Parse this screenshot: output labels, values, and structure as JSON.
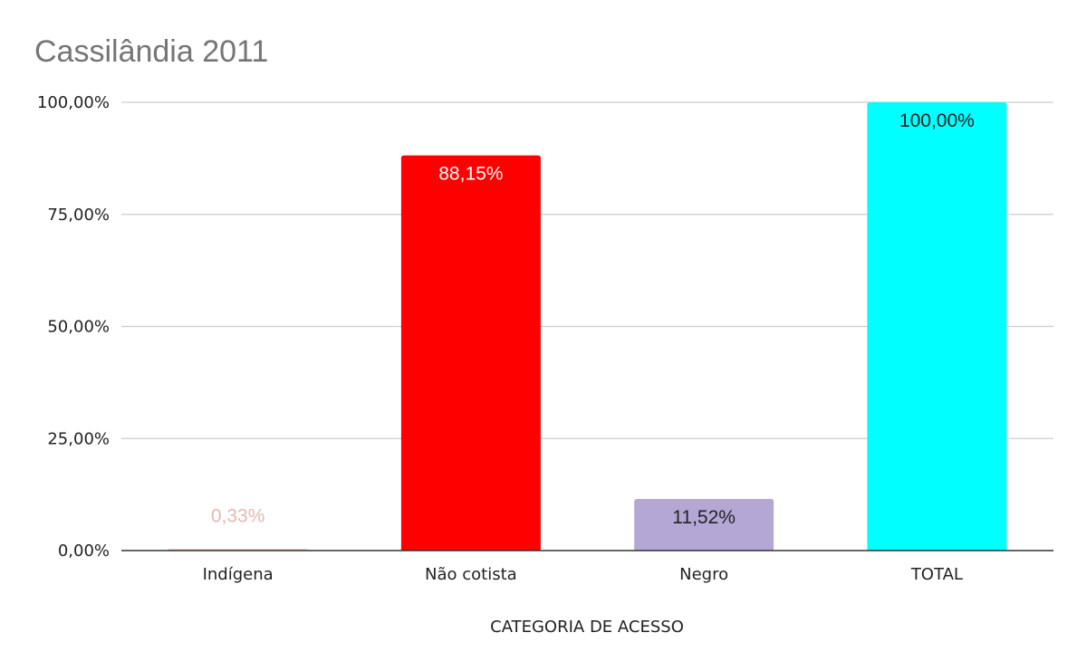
{
  "chart_data": {
    "type": "bar",
    "title": "Cassilândia 2011",
    "xlabel": "CATEGORIA DE ACESSO",
    "ylabel": "",
    "ylim": [
      0,
      100
    ],
    "yticks": [
      0,
      25,
      50,
      75,
      100
    ],
    "ytick_labels": [
      "0,00%",
      "25,00%",
      "50,00%",
      "75,00%",
      "100,00%"
    ],
    "grid": true,
    "legend": "none",
    "categories": [
      "Indígena",
      "Não cotista",
      "Negro",
      "TOTAL"
    ],
    "values": [
      0.33,
      88.15,
      11.52,
      100.0
    ],
    "value_labels": [
      "0,33%",
      "88,15%",
      "11,52%",
      "100,00%"
    ],
    "bar_colors": [
      "#e6b8af",
      "#ff0000",
      "#b4a7d6",
      "#00ffff"
    ],
    "label_colors": [
      "#e6b8af",
      "#ffffff",
      "#222222",
      "#222222"
    ]
  }
}
